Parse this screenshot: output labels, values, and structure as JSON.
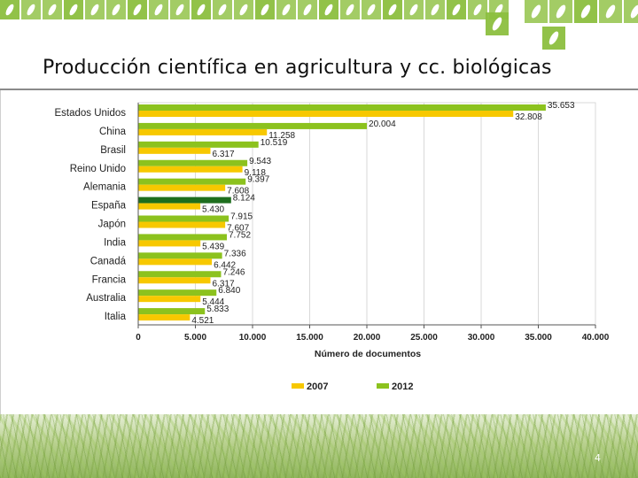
{
  "slide": {
    "title": "Producción científica en agricultura y cc. biológicas",
    "page_number": "4"
  },
  "colors": {
    "series_2007": "#f7c800",
    "series_2012": "#8cc21e",
    "highlight_2012": "#1e6e1e",
    "tile_green": "#8cbf3f",
    "grid": "#d9d9d9"
  },
  "chart_data": {
    "type": "bar",
    "orientation": "horizontal",
    "title": "",
    "xlabel": "Número de documentos",
    "ylabel": "",
    "xlim": [
      0,
      40000
    ],
    "x_ticks": [
      0,
      5000,
      10000,
      15000,
      20000,
      25000,
      30000,
      35000,
      40000
    ],
    "x_tick_labels": [
      "0",
      "5.000",
      "10.000",
      "15.000",
      "20.000",
      "25.000",
      "30.000",
      "35.000",
      "40.000"
    ],
    "grid": true,
    "legend_position": "bottom",
    "categories": [
      "Estados Unidos",
      "China",
      "Brasil",
      "Reino Unido",
      "Alemania",
      "España",
      "Japón",
      "India",
      "Canadá",
      "Francia",
      "Australia",
      "Italia"
    ],
    "highlight_category": "España",
    "series": [
      {
        "name": "2007",
        "values": [
          32808,
          11258,
          6317,
          9118,
          7608,
          5430,
          7607,
          5439,
          6442,
          6317,
          5444,
          4521
        ],
        "labels": [
          "32.808",
          "11.258",
          "6.317",
          "9.118",
          "7.608",
          "5.430",
          "7.607",
          "5.439",
          "6.442",
          "6.317",
          "5.444",
          "4.521"
        ]
      },
      {
        "name": "2012",
        "values": [
          35653,
          20004,
          10519,
          9543,
          9397,
          8124,
          7915,
          7752,
          7336,
          7246,
          6840,
          5833
        ],
        "labels": [
          "35.653",
          "20.004",
          "10.519",
          "9.543",
          "9.397",
          "8.124",
          "7.915",
          "7.752",
          "7.336",
          "7.246",
          "6.840",
          "5.833"
        ]
      }
    ]
  }
}
